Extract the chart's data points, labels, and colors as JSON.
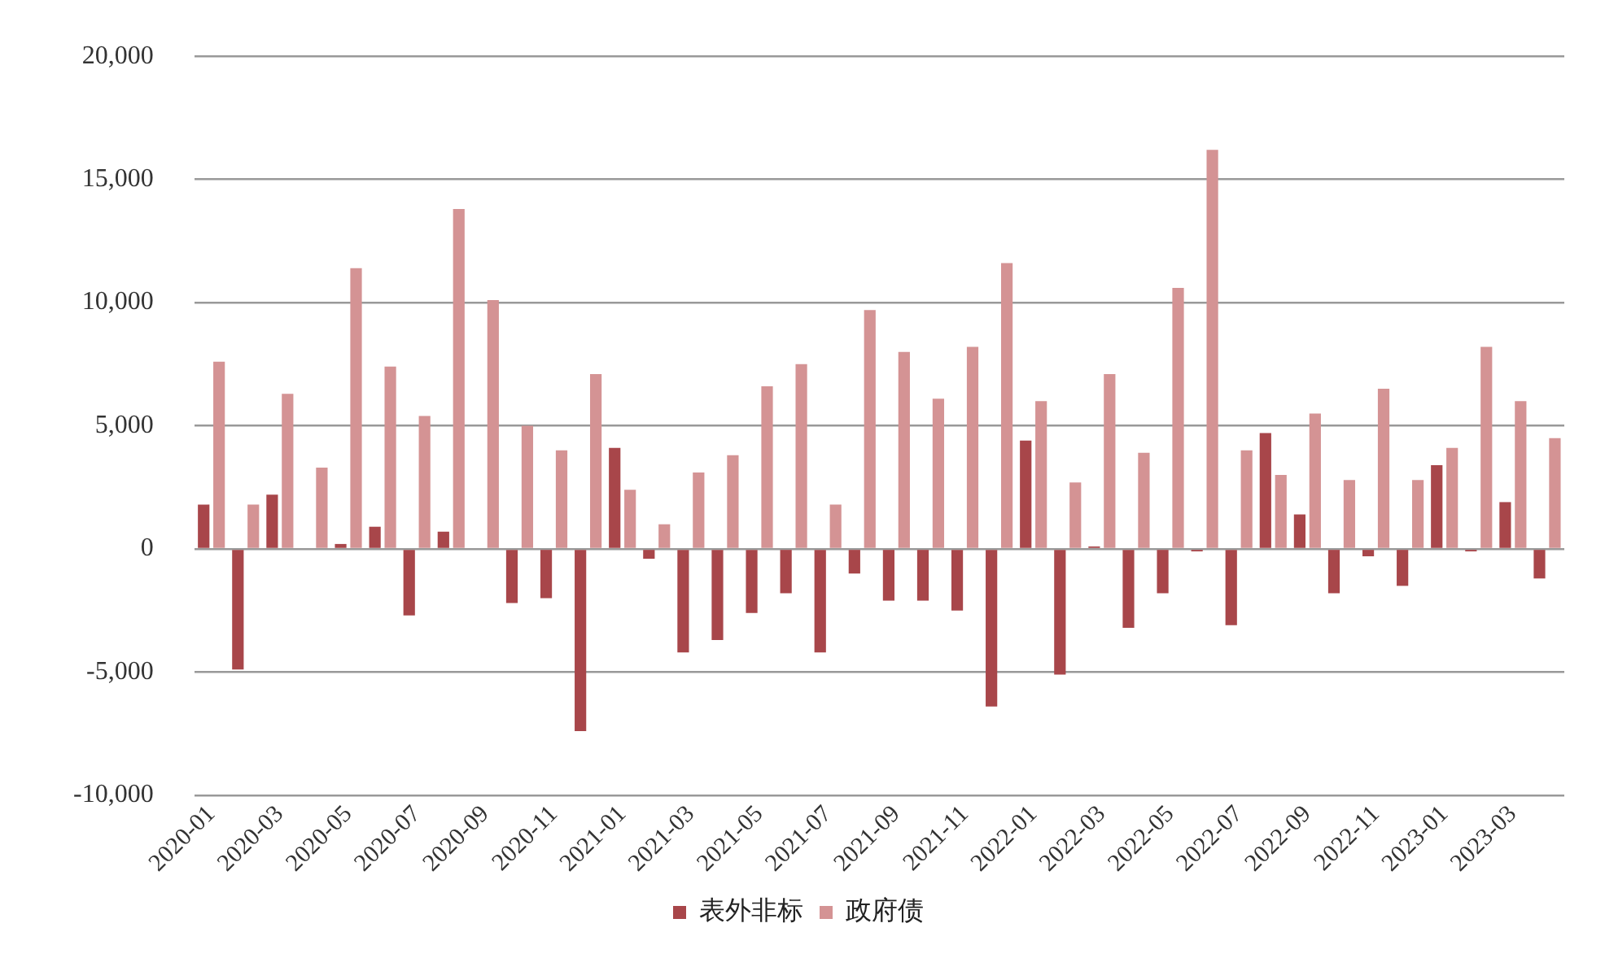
{
  "chart_data": {
    "type": "bar",
    "categories": [
      "2020-01",
      null,
      "2020-03",
      null,
      "2020-05",
      null,
      "2020-07",
      null,
      "2020-09",
      null,
      "2020-11",
      null,
      "2021-01",
      null,
      "2021-03",
      null,
      "2021-05",
      null,
      "2021-07",
      null,
      "2021-09",
      null,
      "2021-11",
      null,
      "2022-01",
      null,
      "2022-03",
      null,
      "2022-05",
      null,
      "2022-07",
      null,
      "2022-09",
      null,
      "2022-11",
      null,
      "2023-01",
      null,
      "2023-03",
      null
    ],
    "series": [
      {
        "name": "表外非标",
        "color": "#a8464a",
        "values": [
          1800,
          -4900,
          2200,
          0,
          200,
          900,
          -2700,
          700,
          0,
          -2200,
          -2000,
          -7400,
          4100,
          -400,
          -4200,
          -3700,
          -2600,
          -1800,
          -4200,
          -1000,
          -2100,
          -2100,
          -2500,
          -6400,
          4400,
          -5100,
          100,
          -3200,
          -1800,
          -100,
          -3100,
          4700,
          1400,
          -1800,
          -300,
          -1500,
          3400,
          -100,
          1900,
          -1200
        ]
      },
      {
        "name": "政府债",
        "color": "#d49394",
        "values": [
          7600,
          1800,
          6300,
          3300,
          11400,
          7400,
          5400,
          13800,
          10100,
          5000,
          4000,
          7100,
          2400,
          1000,
          3100,
          3800,
          6600,
          7500,
          1800,
          9700,
          8000,
          6100,
          8200,
          11600,
          6000,
          2700,
          7100,
          3900,
          10600,
          16200,
          4000,
          3000,
          5500,
          2800,
          6500,
          2800,
          4100,
          8200,
          6000,
          4500
        ]
      }
    ],
    "ylim": [
      -10000,
      20000
    ],
    "yticks": [
      {
        "value": -10000,
        "label": "-10,000"
      },
      {
        "value": -5000,
        "label": "-5,000"
      },
      0,
      {
        "value": 5000,
        "label": "5,000"
      },
      {
        "value": 10000,
        "label": "10,000"
      },
      {
        "value": 15000,
        "label": "15,000"
      },
      {
        "value": 20000,
        "label": "20,000"
      }
    ],
    "grid": "y",
    "legend": "bottom"
  }
}
